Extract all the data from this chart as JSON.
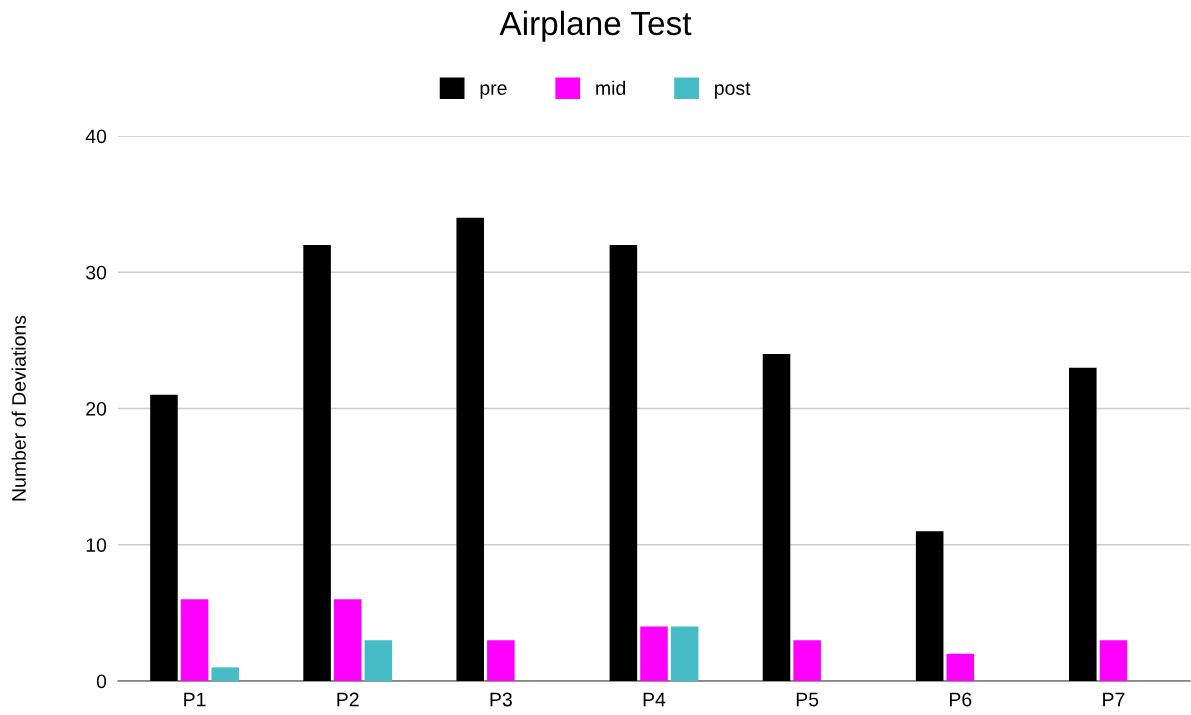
{
  "chart_data": {
    "type": "bar",
    "title": "Airplane Test",
    "ylabel": "Number of Deviations",
    "categories": [
      "P1",
      "P2",
      "P3",
      "P4",
      "P5",
      "P6",
      "P7"
    ],
    "series": [
      {
        "name": "pre",
        "color": "#000000",
        "values": [
          21,
          32,
          34,
          32,
          24,
          11,
          23
        ]
      },
      {
        "name": "mid",
        "color": "#ff00ff",
        "values": [
          6,
          6,
          3,
          4,
          3,
          2,
          3
        ]
      },
      {
        "name": "post",
        "color": "#46bdc6",
        "values": [
          1,
          3,
          null,
          4,
          null,
          null,
          null
        ]
      }
    ],
    "ylim": [
      0,
      40
    ],
    "yticks": [
      0,
      10,
      20,
      30,
      40
    ],
    "grid": "y",
    "legend": "top"
  }
}
